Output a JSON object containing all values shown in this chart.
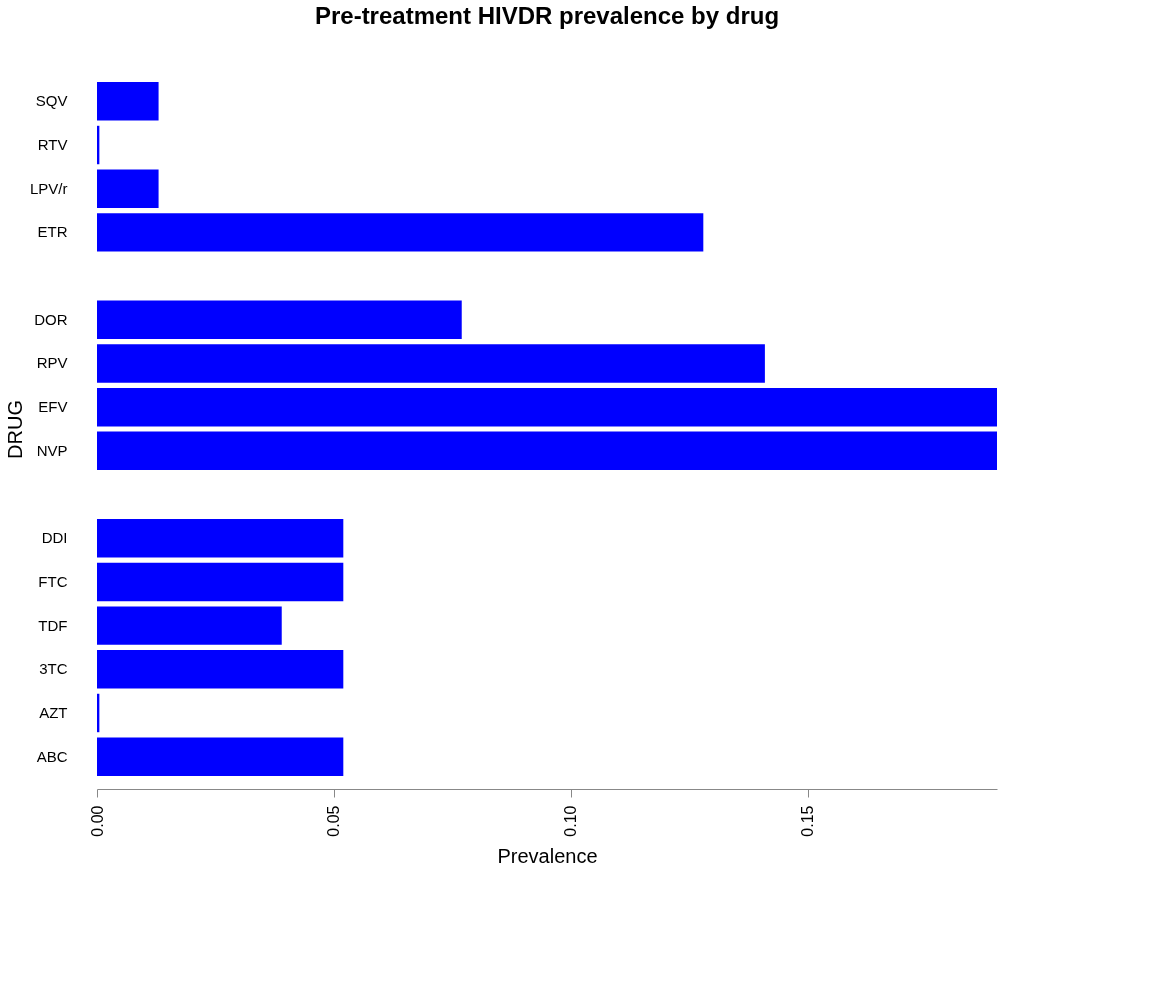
{
  "chart_data": {
    "type": "bar",
    "orientation": "horizontal",
    "title": "Pre-treatment HIVDR prevalence by drug",
    "xlabel": "Prevalence",
    "ylabel": "DRUG",
    "categories": [
      "SQV",
      "RTV",
      "LPV/r",
      "ETR",
      null,
      "DOR",
      "RPV",
      "EFV",
      "NVP",
      null,
      "DDI",
      "FTC",
      "TDF",
      "3TC",
      "AZT",
      "ABC"
    ],
    "values": [
      0.013,
      0.0005,
      0.013,
      0.128,
      null,
      0.077,
      0.141,
      0.19,
      0.19,
      null,
      0.052,
      0.052,
      0.039,
      0.052,
      0.0005,
      0.052
    ],
    "color": "#0000ff",
    "xlim": [
      0,
      0.19
    ],
    "xticks": [
      {
        "value": 0,
        "label": "0.00"
      },
      {
        "value": 0.05,
        "label": "0.05"
      },
      {
        "value": 0.1,
        "label": "0.10"
      },
      {
        "value": 0.15,
        "label": "0.15"
      }
    ],
    "grid": false
  }
}
